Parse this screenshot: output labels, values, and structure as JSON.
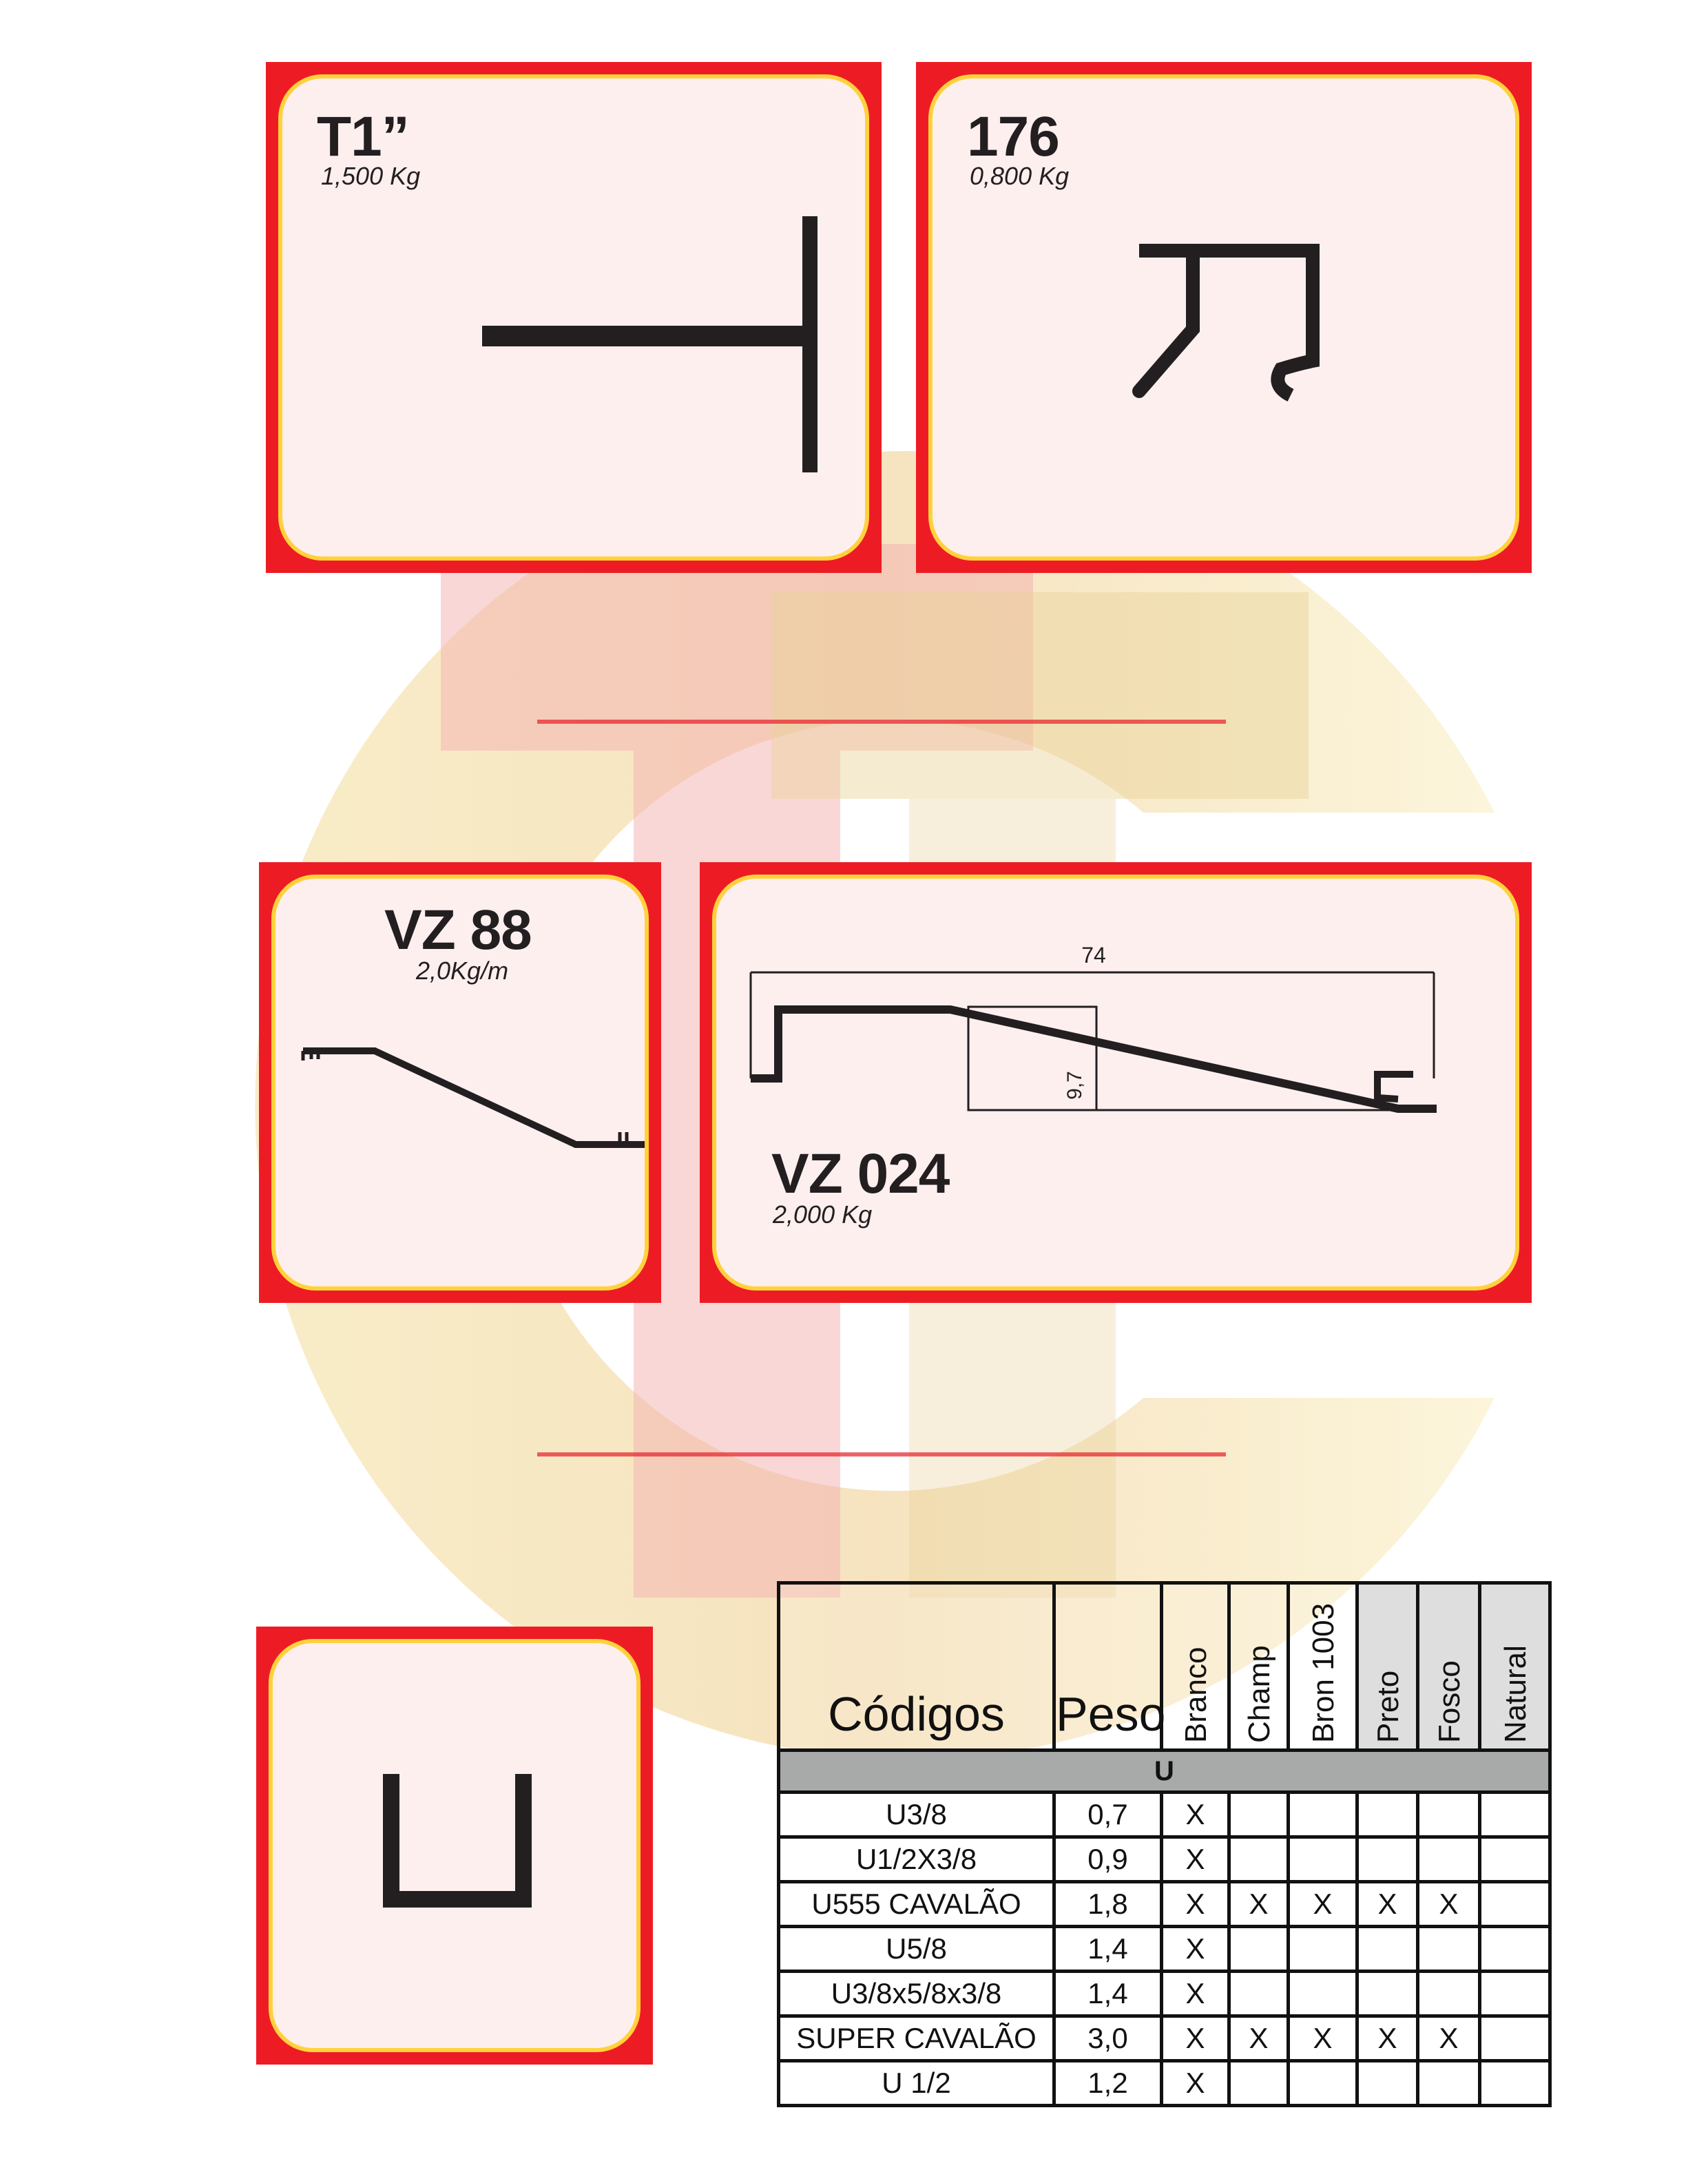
{
  "colors": {
    "frame": "#ed1c24",
    "inner_border": "#ffd23c",
    "profile": "#231f20"
  },
  "watermark": {
    "description_icon": "company-logo-watermark"
  },
  "products": [
    {
      "code": "T1”",
      "weight": "1,500 Kg"
    },
    {
      "code": "176",
      "weight": "0,800 Kg"
    },
    {
      "code": "VZ 88",
      "weight": "2,0Kg/m"
    },
    {
      "code": "VZ 024",
      "weight": "2,000 Kg",
      "dim_width": "74",
      "dim_height": "9,7"
    },
    {
      "code": "",
      "weight": ""
    }
  ],
  "table": {
    "headers": [
      "Códigos",
      "Peso",
      "Branco",
      "Champ",
      "Bron 1003",
      "Preto",
      "Fosco",
      "Natural"
    ],
    "group": "U",
    "rows": [
      [
        "U3/8",
        "0,7",
        "X",
        "",
        "",
        "",
        "",
        ""
      ],
      [
        "U1/2X3/8",
        "0,9",
        "X",
        "",
        "",
        "",
        "",
        ""
      ],
      [
        "U555 CAVALÃO",
        "1,8",
        "X",
        "X",
        "X",
        "X",
        "X",
        ""
      ],
      [
        "U5/8",
        "1,4",
        "X",
        "",
        "",
        "",
        "",
        ""
      ],
      [
        "U3/8x5/8x3/8",
        "1,4",
        "X",
        "",
        "",
        "",
        "",
        ""
      ],
      [
        "SUPER CAVALÃO",
        "3,0",
        "X",
        "X",
        "X",
        "X",
        "X",
        ""
      ],
      [
        "U 1/2",
        "1,2",
        "X",
        "",
        "",
        "",
        "",
        ""
      ]
    ]
  }
}
